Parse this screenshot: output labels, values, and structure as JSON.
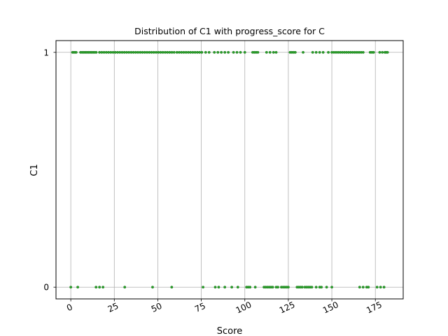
{
  "chart_data": {
    "type": "scatter",
    "title": "Distribution of C1 with progress_score for C",
    "xlabel": "Score",
    "ylabel": "C1",
    "xlim": [
      -8.5,
      191
    ],
    "ylim": [
      -0.05,
      1.05
    ],
    "x_ticks": [
      0,
      25,
      50,
      75,
      100,
      125,
      150,
      175
    ],
    "y_ticks": [
      0,
      1
    ],
    "grid": true,
    "marker_color": "#2ca02c",
    "marker_edge_color": "#1f7a1f",
    "series": [
      {
        "name": "",
        "points_y1": [
          1.0,
          1.7,
          2.4,
          3.1,
          5.6,
          6.5,
          7.4,
          8.3,
          9.2,
          10.1,
          11.0,
          11.9,
          12.8,
          13.7,
          14.6,
          16.5,
          17.8,
          19.1,
          20.4,
          21.7,
          23.0,
          24.3,
          25.6,
          26.9,
          28.2,
          29.5,
          30.8,
          32.1,
          33.4,
          34.7,
          36.0,
          37.3,
          38.6,
          39.9,
          41.2,
          42.5,
          43.8,
          45.1,
          46.4,
          47.7,
          49.0,
          50.3,
          51.6,
          52.9,
          54.2,
          55.5,
          56.8,
          58.1,
          59.4,
          61.0,
          62.3,
          63.6,
          64.9,
          66.2,
          67.5,
          68.8,
          70.1,
          71.4,
          72.7,
          74.0,
          75.3,
          77.5,
          79.5,
          82.5,
          84.5,
          86.5,
          88.5,
          90.5,
          93.5,
          95.5,
          97.5,
          100.0,
          104.5,
          105.5,
          106.5,
          107.5,
          112.5,
          114.5,
          116.5,
          118.0,
          126.0,
          127.0,
          128.0,
          129.0,
          133.5,
          139.0,
          141.0,
          143.0,
          145.0,
          148.0,
          150.0,
          151.2,
          152.4,
          153.6,
          154.8,
          156.0,
          157.2,
          158.4,
          159.6,
          160.8,
          162.0,
          163.2,
          164.4,
          165.6,
          166.8,
          168.0,
          172.0,
          173.0,
          174.0,
          177.5,
          179.0,
          180.5,
          181.2,
          182.0
        ],
        "points_y0": [
          0.0,
          4.0,
          14.5,
          16.5,
          18.5,
          31.0,
          47.0,
          58.0,
          76.0,
          83.0,
          85.0,
          88.5,
          92.5,
          96.0,
          101.0,
          102.0,
          103.0,
          106.0,
          111.0,
          112.0,
          113.0,
          114.0,
          115.0,
          116.0,
          118.0,
          119.0,
          121.0,
          122.0,
          123.0,
          124.0,
          125.0,
          130.0,
          131.0,
          132.0,
          133.0,
          134.5,
          135.5,
          136.5,
          137.5,
          138.5,
          141.0,
          143.0,
          144.0,
          147.0,
          150.0,
          166.0,
          168.0,
          170.0,
          171.0,
          176.0,
          178.0,
          180.0
        ]
      }
    ]
  }
}
